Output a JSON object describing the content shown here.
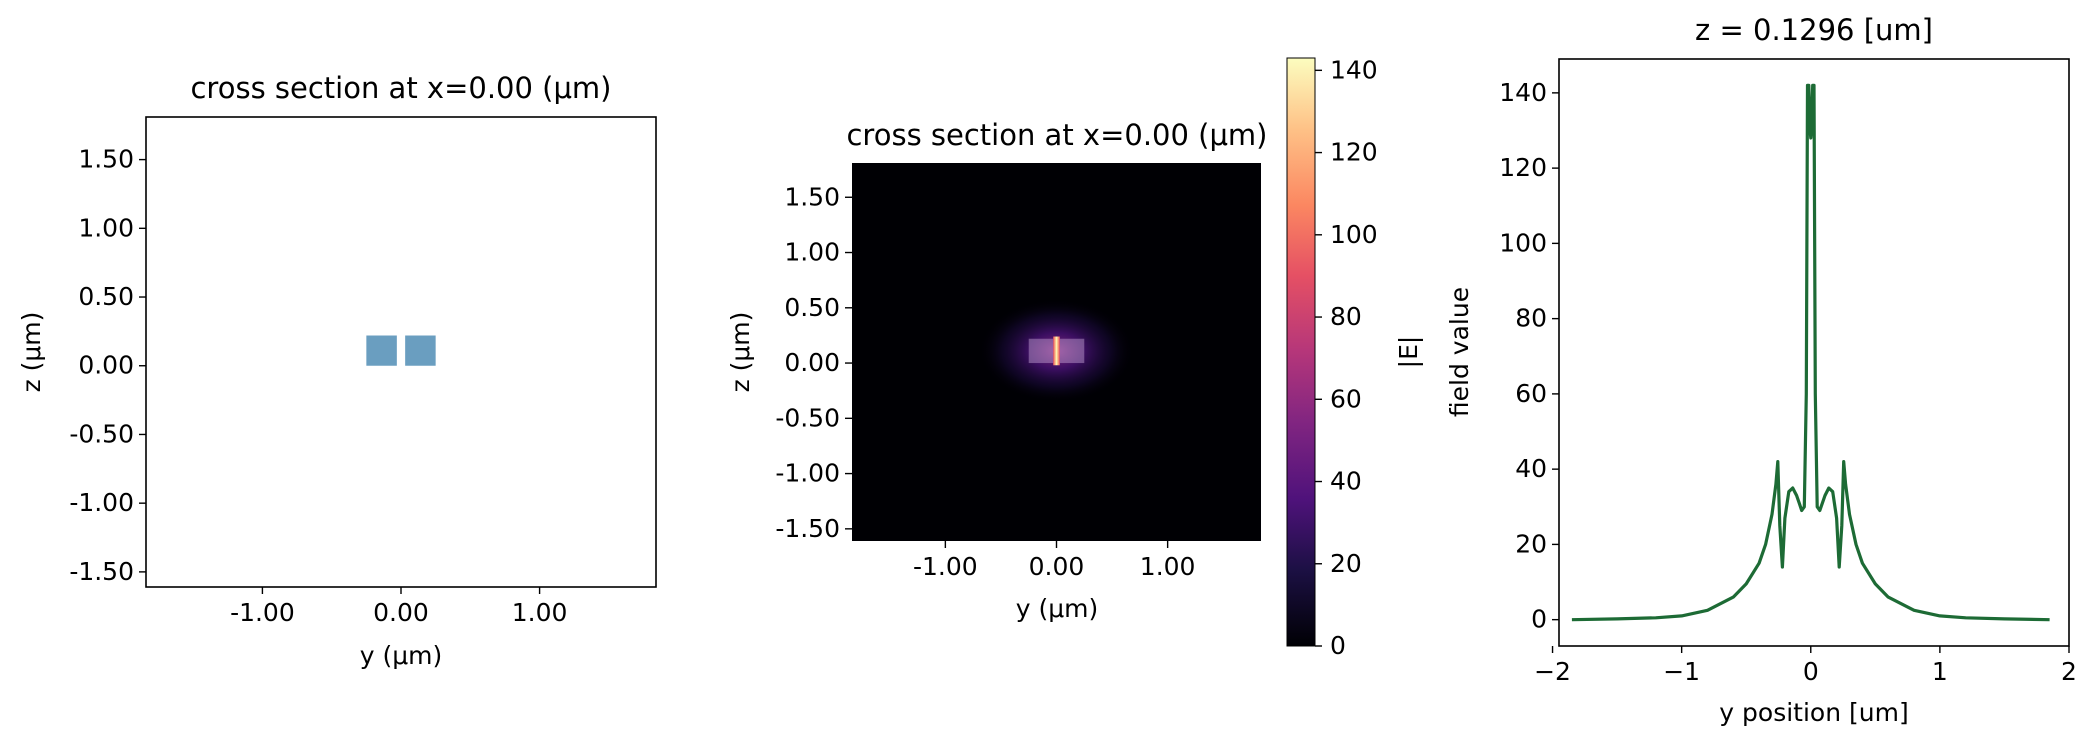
{
  "chart_data": [
    {
      "type": "geometry-cross-section",
      "title": "cross section at x=0.00 (μm)",
      "xlabel": "y (μm)",
      "ylabel": "z (μm)",
      "xlim": [
        -1.84,
        1.84
      ],
      "ylim": [
        -1.61,
        1.81
      ],
      "xticks": [
        -1.0,
        0.0,
        1.0
      ],
      "xtick_labels": [
        "-1.00",
        "0.00",
        "1.00"
      ],
      "yticks": [
        -1.5,
        -1.0,
        -0.5,
        0.0,
        0.5,
        1.0,
        1.5
      ],
      "ytick_labels": [
        "-1.50",
        "-1.00",
        "-0.50",
        "0.00",
        "0.50",
        "1.00",
        "1.50"
      ],
      "structures": [
        {
          "name": "waveguide-left",
          "y": [
            -0.25,
            -0.03
          ],
          "z": [
            0.0,
            0.22
          ],
          "color": "#6a9ec0"
        },
        {
          "name": "waveguide-right",
          "y": [
            0.03,
            0.25
          ],
          "z": [
            0.0,
            0.22
          ],
          "color": "#6a9ec0"
        }
      ]
    },
    {
      "type": "heatmap",
      "title": "cross section at x=0.00 (μm)",
      "xlabel": "y (μm)",
      "ylabel": "z (μm)",
      "xlim": [
        -1.84,
        1.84
      ],
      "ylim": [
        -1.61,
        1.81
      ],
      "xticks": [
        -1.0,
        0.0,
        1.0
      ],
      "xtick_labels": [
        "-1.00",
        "0.00",
        "1.00"
      ],
      "yticks": [
        -1.5,
        -1.0,
        -0.5,
        0.0,
        0.5,
        1.0,
        1.5
      ],
      "ytick_labels": [
        "-1.50",
        "-1.00",
        "-0.50",
        "0.00",
        "0.50",
        "1.00",
        "1.50"
      ],
      "colormap": "magma",
      "colorbar_label": "|E|",
      "colorbar_range": [
        0,
        143
      ],
      "colorbar_ticks": [
        0,
        20,
        40,
        60,
        80,
        100,
        120,
        140
      ],
      "colorbar_tick_labels": [
        "0",
        "20",
        "40",
        "60",
        "80",
        "100",
        "120",
        "140"
      ],
      "field_peak": {
        "y": 0.0,
        "z": 0.11,
        "value": 142
      },
      "waveguide_overlay": [
        {
          "y": [
            -0.25,
            -0.03
          ],
          "z": [
            0.0,
            0.22
          ]
        },
        {
          "y": [
            0.03,
            0.25
          ],
          "z": [
            0.0,
            0.22
          ]
        }
      ]
    },
    {
      "type": "line",
      "title": "z = 0.1296 [um]",
      "xlabel": "y position [um]",
      "ylabel": "field value",
      "xlim": [
        -1.95,
        2.0
      ],
      "ylim": [
        -7,
        149
      ],
      "xticks": [
        -2,
        -1,
        0,
        1,
        2
      ],
      "xtick_labels": [
        "−2",
        "−1",
        "0",
        "1",
        "2"
      ],
      "yticks": [
        0,
        20,
        40,
        60,
        80,
        100,
        120,
        140
      ],
      "ytick_labels": [
        "0",
        "20",
        "40",
        "60",
        "80",
        "100",
        "120",
        "140"
      ],
      "line_color": "#1d6b35",
      "series": [
        {
          "x": [
            -1.85,
            -1.5,
            -1.2,
            -1.0,
            -0.8,
            -0.6,
            -0.5,
            -0.4,
            -0.35,
            -0.3,
            -0.27,
            -0.255,
            -0.24,
            -0.22,
            -0.2,
            -0.17,
            -0.14,
            -0.11,
            -0.09,
            -0.07,
            -0.05,
            -0.035,
            -0.025,
            -0.015,
            -0.005,
            0.0,
            0.005,
            0.015,
            0.025,
            0.035,
            0.05,
            0.07,
            0.09,
            0.11,
            0.14,
            0.17,
            0.2,
            0.22,
            0.24,
            0.255,
            0.27,
            0.3,
            0.35,
            0.4,
            0.5,
            0.6,
            0.8,
            1.0,
            1.2,
            1.5,
            1.85
          ],
          "y": [
            0,
            0.2,
            0.5,
            1,
            2.5,
            6,
            9.5,
            15,
            20,
            28,
            36,
            42,
            25,
            14,
            27,
            34,
            35,
            33,
            31,
            29,
            30,
            60,
            142,
            142,
            130,
            128,
            130,
            142,
            142,
            60,
            30,
            29,
            31,
            33,
            35,
            34,
            27,
            14,
            25,
            42,
            36,
            28,
            20,
            15,
            9.5,
            6,
            2.5,
            1,
            0.5,
            0.2,
            0
          ]
        }
      ]
    }
  ]
}
